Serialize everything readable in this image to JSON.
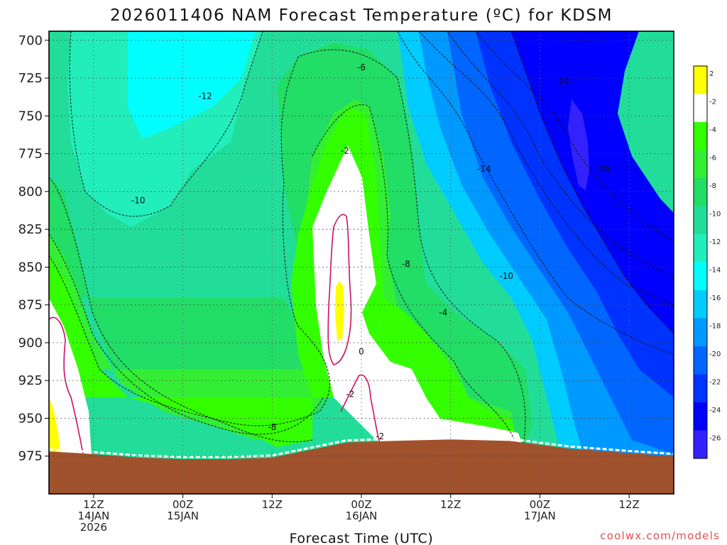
{
  "chart_data": {
    "type": "heatmap",
    "title": "2026011406 NAM Forecast Temperature (ºC) for KDSM",
    "xlabel": "Forecast Time (UTC)",
    "ylabel": "",
    "y_axis": {
      "unit": "hPa",
      "inverted": true,
      "ticks": [
        700,
        725,
        750,
        775,
        800,
        825,
        850,
        875,
        900,
        925,
        950,
        975
      ],
      "ylim": [
        1000,
        694
      ]
    },
    "x_axis": {
      "ticks": [
        {
          "hours": 12,
          "l1": "12Z",
          "l2": "14JAN",
          "l3": "2026"
        },
        {
          "hours": 24,
          "l1": "00Z",
          "l2": "15JAN",
          "l3": ""
        },
        {
          "hours": 36,
          "l1": "12Z",
          "l2": "",
          "l3": ""
        },
        {
          "hours": 48,
          "l1": "00Z",
          "l2": "16JAN",
          "l3": ""
        },
        {
          "hours": 60,
          "l1": "12Z",
          "l2": "",
          "l3": ""
        },
        {
          "hours": 72,
          "l1": "00Z",
          "l2": "17JAN",
          "l3": ""
        },
        {
          "hours": 84,
          "l1": "12Z",
          "l2": "",
          "l3": ""
        }
      ],
      "xlim": [
        6,
        90
      ]
    },
    "grid": true,
    "colorbar": {
      "position": "right",
      "levels": [
        2,
        -2,
        -4,
        -6,
        -8,
        -10,
        -12,
        -14,
        -16,
        -18,
        -20,
        -22,
        -24,
        -26
      ],
      "colors": [
        "#ffff00",
        "#ffffff",
        "#33ff00",
        "#33ee33",
        "#22dd66",
        "#22dd99",
        "#22eebb",
        "#00ffff",
        "#00ccff",
        "#0099ff",
        "#0066ff",
        "#0033ff",
        "#0000ff",
        "#3322ff"
      ]
    },
    "contour_labels": [
      {
        "v": "-6",
        "t": 48.0,
        "p": 718
      },
      {
        "v": "-12",
        "t": 27.0,
        "p": 737
      },
      {
        "v": "-24",
        "t": 75.0,
        "p": 727
      },
      {
        "v": "-2",
        "t": 45.8,
        "p": 773
      },
      {
        "v": "-14",
        "t": 64.5,
        "p": 785
      },
      {
        "v": "-26",
        "t": 80.5,
        "p": 785
      },
      {
        "v": "-10",
        "t": 18.0,
        "p": 806
      },
      {
        "v": "-8",
        "t": 54.0,
        "p": 848
      },
      {
        "v": "-10",
        "t": 67.5,
        "p": 856
      },
      {
        "v": "-4",
        "t": 59.0,
        "p": 880
      },
      {
        "v": "0",
        "t": 48.0,
        "p": 906
      },
      {
        "v": "-2",
        "t": 46.5,
        "p": 934
      },
      {
        "v": "-2",
        "t": 50.5,
        "p": 962
      },
      {
        "v": "-8",
        "t": 36.0,
        "p": 956
      }
    ],
    "terrain_color": "#a0522d",
    "terrain": [
      [
        6,
        972
      ],
      [
        10,
        973
      ],
      [
        18,
        976
      ],
      [
        24,
        977
      ],
      [
        30,
        977
      ],
      [
        36,
        976
      ],
      [
        42,
        970
      ],
      [
        46,
        966
      ],
      [
        52,
        965
      ],
      [
        60,
        964
      ],
      [
        68,
        965
      ],
      [
        76,
        970
      ],
      [
        84,
        973
      ],
      [
        90,
        975
      ]
    ]
  },
  "credit": "coolwx.com/models"
}
